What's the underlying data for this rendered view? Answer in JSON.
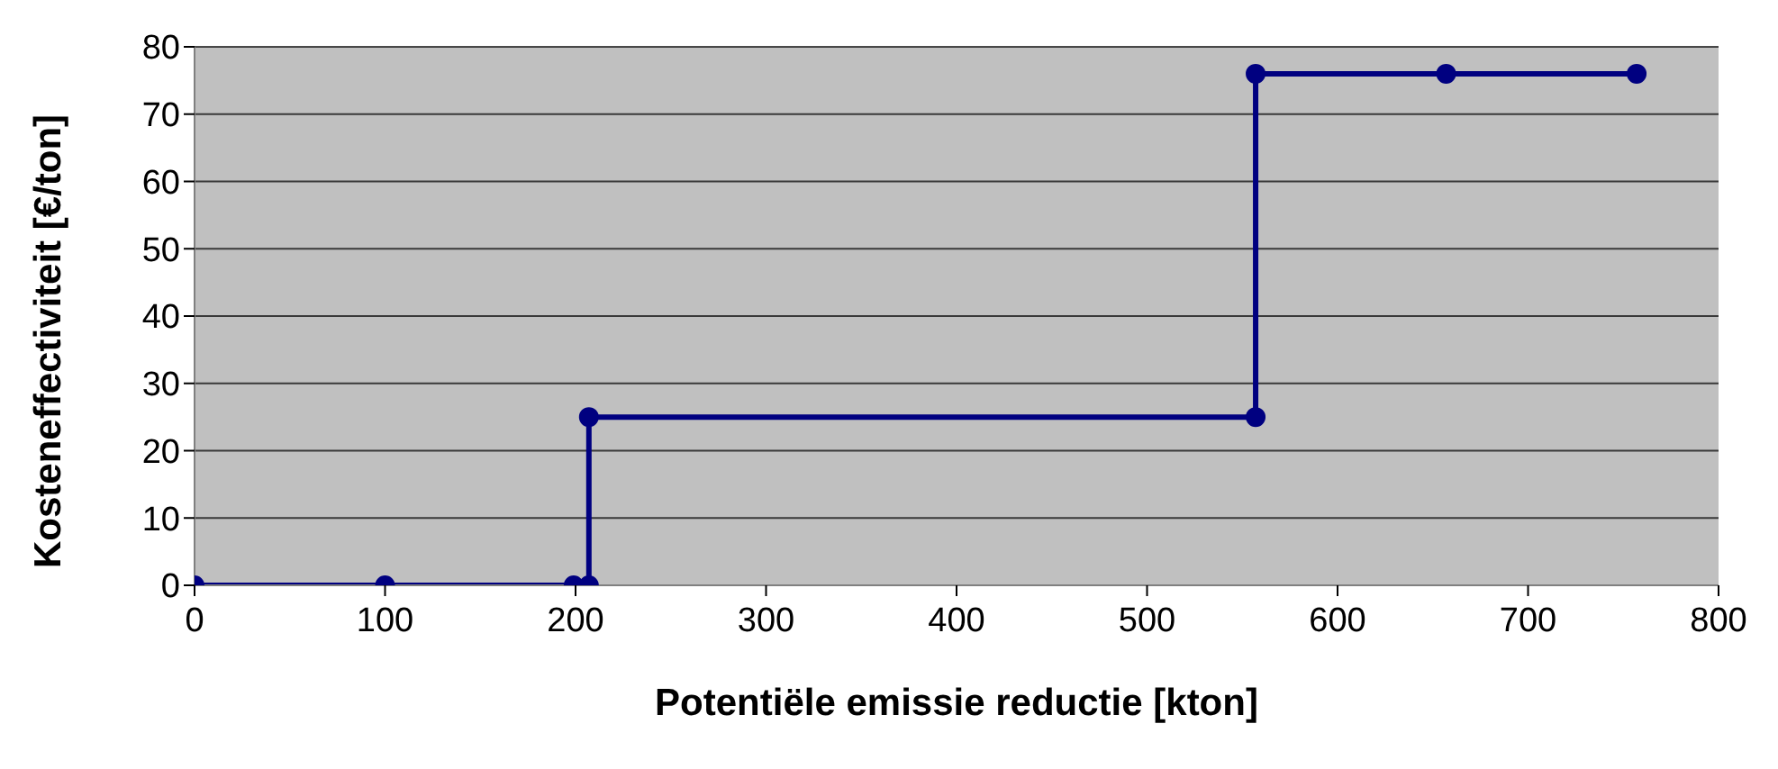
{
  "chart_data": {
    "type": "line",
    "xlabel": "Potentiële emissie reductie [kton]",
    "ylabel": "Kosteneffectiviteit [€/ton]",
    "x": [
      0,
      100,
      199,
      207,
      207,
      557,
      557,
      657,
      757
    ],
    "series": [
      {
        "color": "#000080",
        "values": [
          0,
          0,
          0,
          0,
          25,
          25,
          76,
          76,
          76
        ]
      }
    ],
    "xlim": [
      0,
      800
    ],
    "xticks": [
      0,
      100,
      200,
      300,
      400,
      500,
      600,
      700,
      800
    ],
    "ylim": [
      0,
      80
    ],
    "yticks": [
      0,
      10,
      20,
      30,
      40,
      50,
      60,
      70,
      80
    ],
    "grid": "y",
    "marker": "circle",
    "line_style": "solid",
    "legend": false
  }
}
